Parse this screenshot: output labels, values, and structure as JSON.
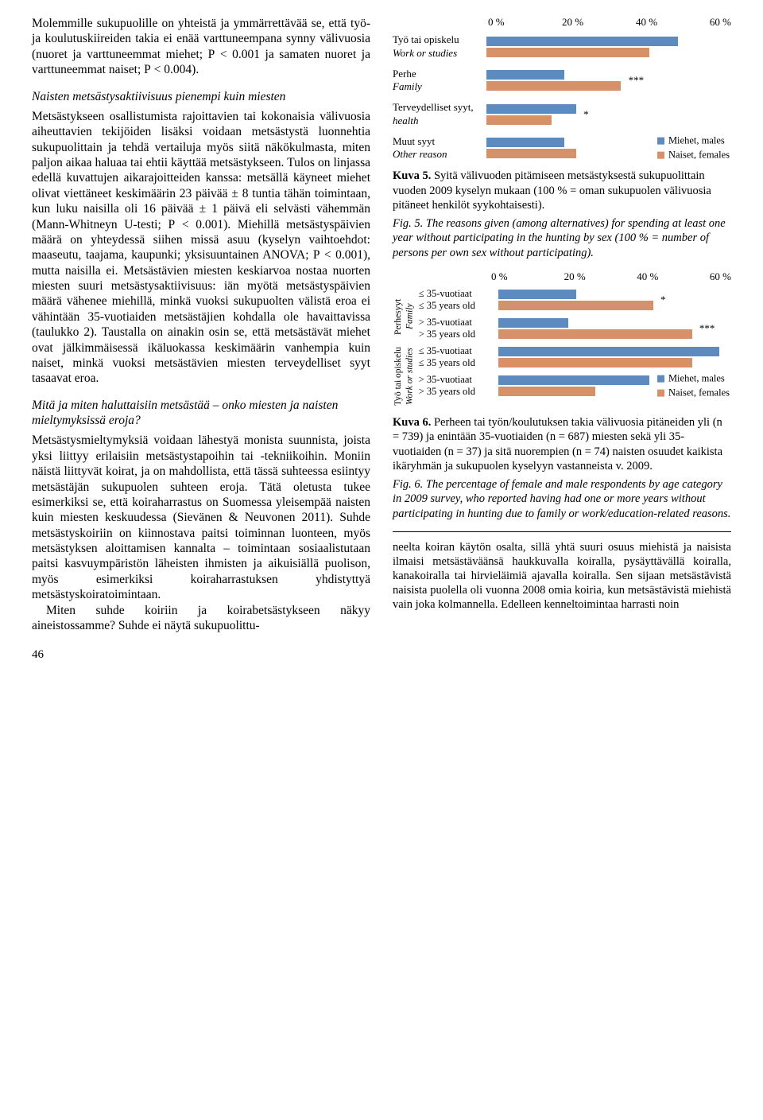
{
  "colors": {
    "male": "#5e8bbf",
    "female": "#d69169",
    "text": "#000000"
  },
  "left": {
    "para1": "Molemmille sukupuolille on yhteistä ja ymmärrettävää se, että työ- ja koulutuskiireiden takia ei enää varttuneempana synny välivuosia (nuoret ja varttuneemmat miehet; P < 0.001 ja samaten nuoret ja varttuneemmat naiset; P < 0.004).",
    "subhead1": "Naisten metsästysaktiivisuus pienempi kuin miesten",
    "para2": "Metsästykseen osallistumista rajoittavien tai kokonaisia välivuosia aiheuttavien tekijöiden lisäksi voidaan metsästystä luonnehtia sukupuolittain ja tehdä vertailuja myös siitä näkökulmasta, miten paljon aikaa haluaa tai ehtii käyttää metsästykseen. Tulos on linjassa edellä kuvattujen aikarajoitteiden kanssa: metsällä käyneet miehet olivat viettäneet keskimäärin 23 päivää ± 8 tuntia tähän toimintaan, kun luku naisilla oli 16 päivää ± 1 päivä eli selvästi vähemmän (Mann-Whitneyn U-testi; P < 0.001). Miehillä metsästyspäivien määrä on yhteydessä siihen missä asuu (kyselyn vaihtoehdot: maaseutu, taajama, kaupunki; yksisuuntainen ANOVA; P < 0.001), mutta naisilla ei. Metsästävien miesten keskiarvoa nostaa nuorten miesten suuri metsästysaktiivisuus: iän myötä metsästyspäivien määrä vähenee miehillä, minkä vuoksi sukupuolten välistä eroa ei vähintään 35-vuotiaiden metsästäjien kohdalla ole havaittavissa (taulukko 2). Taustalla on ainakin osin se, että metsästävät miehet ovat jälkimmäisessä ikäluokassa keskimäärin vanhempia kuin naiset, minkä vuoksi metsästävien miesten terveydelliset syyt tasaavat eroa.",
    "subhead2": "Mitä ja miten haluttaisiin metsästää – onko miesten ja naisten mieltymyksissä eroja?",
    "para3a": "Metsästysmieltymyksiä voidaan lähestyä monista suunnista, joista yksi liittyy erilaisiin metsästystapoihin tai -tekniikoihin. Moniin näistä liittyvät koirat, ja on mahdollista, että tässä suhteessa esiintyy metsästäjän sukupuolen suhteen eroja. Tätä oletusta tukee esimerkiksi se, että koiraharrastus on Suomessa yleisempää naisten kuin miesten keskuudessa (Sievänen & Neuvonen 2011). Suhde metsästyskoiriin on kiinnostava paitsi toiminnan luonteen, myös metsästyksen aloittamisen kannalta – toimintaan sosiaalistutaan paitsi kasvuympäristön läheisten ihmisten ja aikuisiällä puolison, myös esimerkiksi koiraharrastuksen yhdistyttyä metsästyskoiratoimintaan.",
    "para3b": "Miten suhde koiriin ja koirabetsästykseen näkyy aineistossamme? Suhde ei näytä sukupuolittu-",
    "pagenum": "46"
  },
  "chart5": {
    "axis": [
      "0 %",
      "20 %",
      "40 %",
      "60 %"
    ],
    "rows": [
      {
        "label_fi": "Työ tai opiskelu",
        "label_en": "Work or studies",
        "m": 47,
        "f": 40,
        "sig": ""
      },
      {
        "label_fi": "Perhe",
        "label_en": "Family",
        "m": 19,
        "f": 33,
        "sig": "***"
      },
      {
        "label_fi": "Terveydelliset syyt, ",
        "label_en": "health",
        "m": 22,
        "f": 16,
        "sig": "*"
      },
      {
        "label_fi": "Muut syyt",
        "label_en": "Other reason",
        "m": 19,
        "f": 22,
        "sig": ""
      }
    ],
    "legend": {
      "male_fi": "Miehet, ",
      "male_en": "males",
      "female_fi": "Naiset, ",
      "female_en": "females"
    },
    "domain_max": 60,
    "caption_fi": "Kuva 5. Syitä välivuoden pitämiseen metsästyksestä sukupuolittain vuoden 2009 kyselyn mukaan (100 % = oman sukupuolen välivuosia pitäneet henkilöt syykohtaisesti).",
    "caption_en": "Fig. 5. The reasons given (among alternatives) for spending at least one year without participating in the hunting by sex (100 % = number of persons per own sex without participating)."
  },
  "chart6": {
    "axis": [
      "0 %",
      "20 %",
      "40 %",
      "60 %"
    ],
    "blocks": [
      {
        "side_fi": "Perhesyyt",
        "side_en": "Family",
        "rows": [
          {
            "label_fi": "≤ 35-vuotiaat",
            "label_en": "≤ 35 years old",
            "m": 20,
            "f": 40,
            "sig": "*"
          },
          {
            "label_fi": "> 35-vuotiaat",
            "label_en": "> 35 years old",
            "m": 18,
            "f": 50,
            "sig": "***"
          }
        ]
      },
      {
        "side_fi": "Työ tai opiskelu",
        "side_en": "Work or studies",
        "rows": [
          {
            "label_fi": "≤ 35-vuotiaat",
            "label_en": "≤ 35 years old",
            "m": 57,
            "f": 50,
            "sig": ""
          },
          {
            "label_fi": "> 35-vuotiaat",
            "label_en": "> 35 years old",
            "m": 39,
            "f": 25,
            "sig": ""
          }
        ]
      }
    ],
    "legend": {
      "male_fi": "Miehet, ",
      "male_en": "males",
      "female_fi": "Naiset, ",
      "female_en": "females"
    },
    "domain_max": 60,
    "caption_fi": "Kuva 6. Perheen tai työn/koulutuksen takia välivuosia pitäneiden yli (n = 739) ja enintään 35-vuotiaiden (n = 687) miesten sekä yli 35-vuotiaiden (n = 37) ja sitä nuorempien (n = 74) naisten osuudet kaikista ikäryhmän ja sukupuolen kyselyyn vastanneista v. 2009.",
    "caption_en": "Fig. 6. The percentage of female and male respondents by age category in 2009 survey, who reported having had one or more years without participating in hunting due to family or work/education-related reasons."
  },
  "right_body": "neelta koiran käytön osalta, sillä yhtä suuri osuus miehistä ja naisista ilmaisi metsästäväänsä haukkuvalla koiralla, pysäyttävällä koiralla, kanakoiralla tai hirvieläimiä ajavalla koiralla. Sen sijaan metsästävistä naisista puolella oli vuonna 2008 omia koiria, kun metsästävistä miehistä vain joka kolmannella. Edelleen kenneltoimintaa harrasti noin"
}
